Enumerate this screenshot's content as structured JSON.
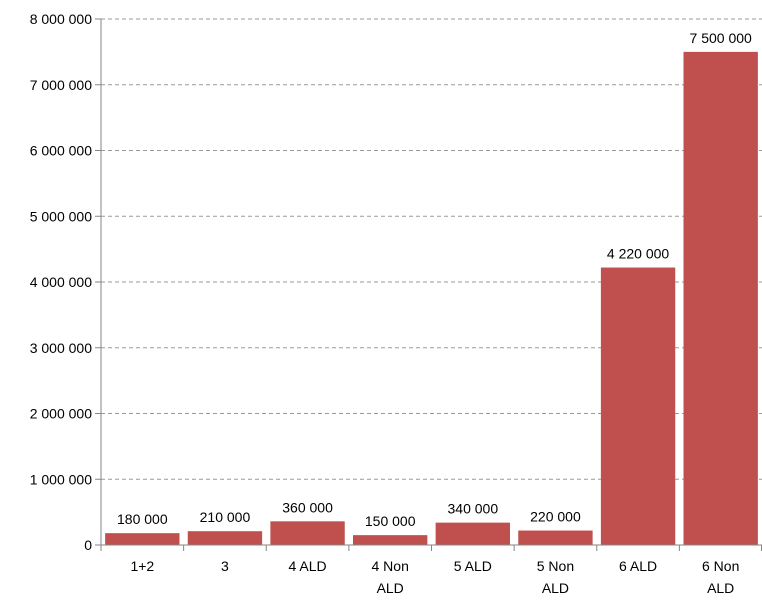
{
  "chart_data": {
    "type": "bar",
    "categories": [
      [
        "1+2"
      ],
      [
        "3"
      ],
      [
        "4 ALD"
      ],
      [
        "4 Non",
        "ALD"
      ],
      [
        "5 ALD"
      ],
      [
        "5 Non",
        "ALD"
      ],
      [
        "6 ALD"
      ],
      [
        "6 Non",
        "ALD"
      ]
    ],
    "values": [
      180000,
      210000,
      360000,
      150000,
      340000,
      220000,
      4220000,
      7500000
    ],
    "data_labels": [
      "180 000",
      "210 000",
      "360 000",
      "150 000",
      "340 000",
      "220 000",
      "4 220 000",
      "7 500 000"
    ],
    "y_ticks": [
      0,
      1000000,
      2000000,
      3000000,
      4000000,
      5000000,
      6000000,
      7000000,
      8000000
    ],
    "y_tick_labels": [
      "0",
      "1 000 000",
      "2 000 000",
      "3 000 000",
      "4 000 000",
      "5 000 000",
      "6 000 000",
      "7 000 000",
      "8 000 000"
    ],
    "ylim": [
      0,
      8000000
    ],
    "title": "",
    "xlabel": "",
    "ylabel": "",
    "grid": true,
    "legend": "none",
    "colors": {
      "bar": "#c0504d",
      "grid": "#9a9a9a",
      "axis": "#868686"
    }
  }
}
